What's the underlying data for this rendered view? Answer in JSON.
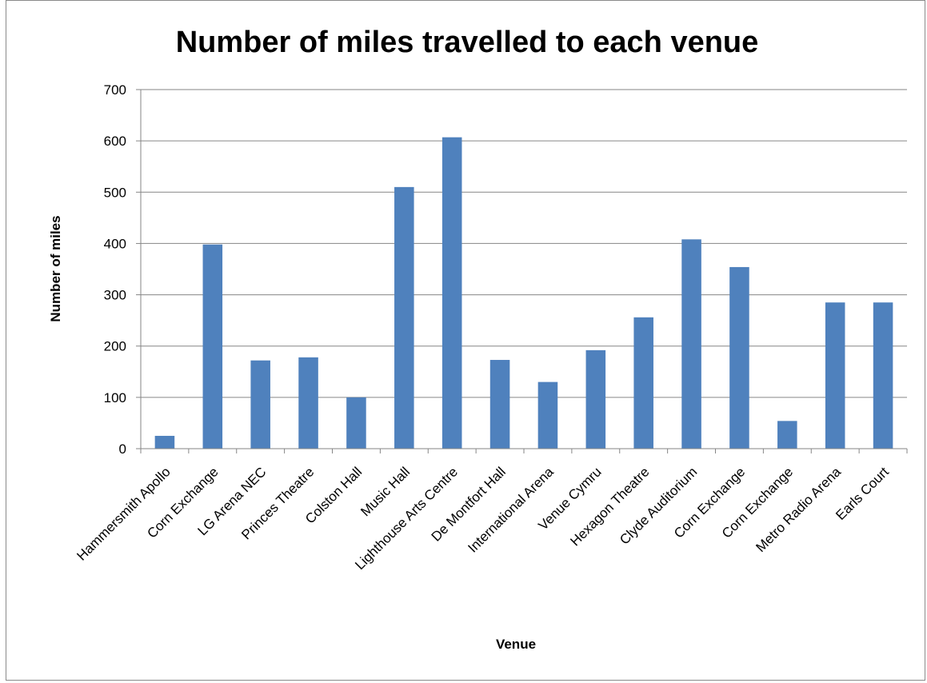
{
  "chart_data": {
    "type": "bar",
    "title": "Number of miles travelled to each venue",
    "xlabel": "Venue",
    "ylabel": "Number of miles",
    "ylim": [
      0,
      700
    ],
    "yticks": [
      0,
      100,
      200,
      300,
      400,
      500,
      600,
      700
    ],
    "grid": true,
    "legend": "none",
    "bar_color": "#4f81bd",
    "categories": [
      "Hammersmith Apollo",
      "Corn Exchange",
      "LG Arena NEC",
      "Princes Theatre",
      "Colston Hall",
      "Music Hall",
      "Lighthouse Arts Centre",
      "De Montfort Hall",
      "International Arena",
      "Venue Cymru",
      "Hexagon Theatre",
      "Clyde Auditorium",
      "Corn Exchange",
      "Corn Exchange",
      "Metro Radio Arena",
      "Earls Court"
    ],
    "values": [
      25,
      398,
      172,
      178,
      100,
      510,
      607,
      173,
      130,
      192,
      256,
      408,
      354,
      54,
      285,
      285
    ]
  }
}
